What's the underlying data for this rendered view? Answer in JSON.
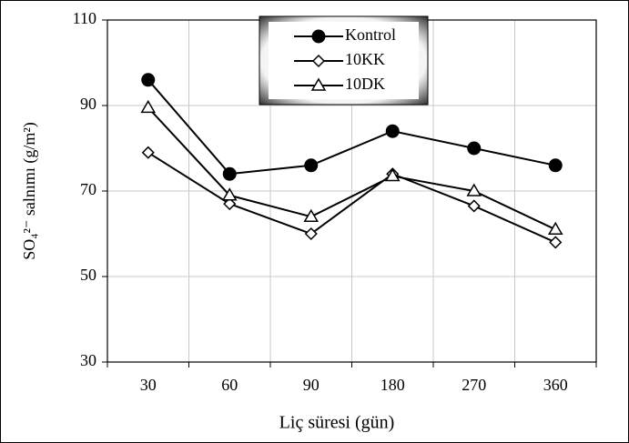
{
  "chart_data": {
    "type": "line",
    "x_label": "Liç süresi (gün)",
    "y_label": "SO₄²⁻ salnımı (g/m²)",
    "categories": [
      "30",
      "60",
      "90",
      "180",
      "270",
      "360"
    ],
    "series": [
      {
        "name": "Kontrol",
        "color": "#000000",
        "marker": "circle",
        "values": [
          96,
          74,
          76,
          84,
          80,
          76
        ]
      },
      {
        "name": "10KK",
        "color": "#000000",
        "marker": "diamond",
        "values": [
          79,
          67,
          60,
          74,
          66.5,
          58
        ]
      },
      {
        "name": "10DK",
        "color": "#000000",
        "marker": "triangle",
        "values": [
          89.5,
          69,
          64,
          73.5,
          70,
          61
        ]
      }
    ],
    "ylim": [
      30,
      110
    ],
    "yticks": [
      30,
      50,
      70,
      90,
      110
    ],
    "grid": true,
    "legend": "top"
  }
}
